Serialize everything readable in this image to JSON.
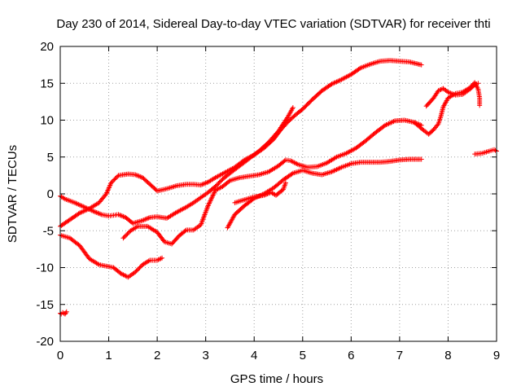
{
  "chart_data": {
    "type": "scatter",
    "title": "Day 230 of 2014, Sidereal Day-to-day VTEC variation (SDTVAR) for receiver thti",
    "xlabel": "GPS time / hours",
    "ylabel": "SDTVAR / TECUs",
    "xlim": [
      0,
      9
    ],
    "ylim": [
      -20,
      20
    ],
    "xticks": [
      0,
      1,
      2,
      3,
      4,
      5,
      6,
      7,
      8,
      9
    ],
    "yticks": [
      -20,
      -15,
      -10,
      -5,
      0,
      5,
      10,
      15,
      20
    ],
    "grid": true,
    "legend": "none",
    "marker": "plus",
    "color": "#ff0000",
    "series": [
      {
        "x": [
          0.0,
          0.02,
          0.05,
          0.1,
          0.13
        ],
        "y": [
          -16.2,
          -16.3,
          -16.1,
          -16.3,
          -16.0
        ]
      },
      {
        "x": [
          0.0,
          0.1,
          0.3,
          0.5,
          0.7,
          0.85,
          1.0,
          1.1,
          1.2,
          1.35,
          1.5,
          1.7,
          1.85,
          2.0,
          2.2,
          2.4,
          2.6,
          2.75,
          2.9,
          3.05,
          3.2,
          3.35,
          3.5,
          3.7,
          3.9,
          4.1,
          4.3,
          4.5,
          4.6,
          4.7,
          4.8
        ],
        "y": [
          -0.3,
          -0.7,
          -1.2,
          -1.8,
          -2.4,
          -2.8,
          -3.0,
          -2.9,
          -2.8,
          -3.2,
          -4.0,
          -3.6,
          -3.2,
          -3.1,
          -3.3,
          -2.5,
          -1.8,
          -1.2,
          -0.5,
          0.2,
          1.0,
          2.0,
          2.8,
          3.8,
          4.8,
          5.8,
          7.0,
          8.5,
          9.5,
          10.5,
          11.7
        ]
      },
      {
        "x": [
          0.0,
          0.2,
          0.4,
          0.6,
          0.8,
          0.95,
          1.1,
          1.25,
          1.4,
          1.55,
          1.7,
          1.85,
          2.0,
          2.1
        ],
        "y": [
          -5.6,
          -6.0,
          -7.0,
          -8.8,
          -9.6,
          -9.8,
          -10.0,
          -10.8,
          -11.3,
          -10.6,
          -9.6,
          -9.0,
          -9.0,
          -8.7
        ]
      },
      {
        "x": [
          0.0,
          0.2,
          0.4,
          0.6,
          0.8,
          0.95,
          1.05,
          1.2,
          1.4,
          1.55,
          1.7,
          1.85,
          2.0,
          2.2,
          2.4,
          2.6,
          2.75,
          2.9,
          3.05,
          3.2,
          3.4,
          3.6,
          3.8,
          4.0,
          4.2,
          4.4,
          4.55,
          4.7,
          4.85,
          5.0,
          5.2,
          5.4,
          5.6,
          5.8,
          6.0,
          6.2,
          6.4,
          6.6,
          6.8,
          7.0,
          7.2,
          7.45
        ],
        "y": [
          -4.4,
          -3.5,
          -2.6,
          -2.0,
          -1.2,
          0.0,
          1.5,
          2.5,
          2.7,
          2.6,
          2.2,
          1.3,
          0.4,
          0.7,
          1.1,
          1.3,
          1.3,
          1.2,
          1.6,
          2.2,
          2.9,
          3.6,
          4.6,
          5.3,
          6.2,
          7.4,
          8.7,
          9.8,
          10.7,
          11.5,
          12.8,
          14.0,
          14.9,
          15.5,
          16.2,
          17.1,
          17.6,
          18.0,
          18.1,
          18.0,
          17.9,
          17.5
        ]
      },
      {
        "x": [
          1.3,
          1.45,
          1.6,
          1.8,
          2.0,
          2.15,
          2.3,
          2.45,
          2.6,
          2.75,
          2.9,
          3.05,
          3.2,
          3.35,
          3.5,
          3.7,
          3.9,
          4.1,
          4.3,
          4.5,
          4.65,
          4.75,
          4.9,
          5.1,
          5.3,
          5.5,
          5.7,
          5.9,
          6.1,
          6.3,
          6.5,
          6.7,
          6.9,
          7.1,
          7.3,
          7.45
        ],
        "y": [
          -6.0,
          -5.0,
          -4.4,
          -4.4,
          -5.2,
          -6.5,
          -6.8,
          -5.7,
          -4.9,
          -4.9,
          -4.2,
          -1.6,
          0.5,
          1.0,
          1.8,
          2.2,
          2.4,
          2.6,
          3.0,
          3.8,
          4.6,
          4.5,
          4.0,
          3.6,
          3.7,
          4.2,
          5.0,
          5.5,
          6.2,
          7.2,
          8.3,
          9.3,
          9.9,
          10.0,
          9.7,
          9.3
        ]
      },
      {
        "x": [
          3.45,
          3.6,
          3.8,
          4.0,
          4.2,
          4.4,
          4.6,
          4.8,
          5.0,
          5.2,
          5.4,
          5.6,
          5.8,
          6.0,
          6.2,
          6.4,
          6.6,
          6.8,
          7.0,
          7.2,
          7.45
        ],
        "y": [
          -4.6,
          -2.8,
          -1.6,
          -0.6,
          0.0,
          0.8,
          1.9,
          2.8,
          3.2,
          2.8,
          2.6,
          3.0,
          3.6,
          4.1,
          4.3,
          4.3,
          4.3,
          4.4,
          4.6,
          4.7,
          4.7
        ]
      },
      {
        "x": [
          3.6,
          3.8,
          4.0,
          4.2,
          4.35,
          4.45,
          4.6,
          4.65
        ],
        "y": [
          -1.2,
          -0.8,
          -0.4,
          -0.2,
          0.2,
          -0.2,
          0.6,
          1.5
        ]
      },
      {
        "x": [
          7.3,
          7.5,
          7.6,
          7.7,
          7.8,
          7.85,
          7.9,
          8.0,
          8.15,
          8.3,
          8.45,
          8.55,
          8.62,
          8.65,
          8.65
        ],
        "y": [
          9.7,
          8.6,
          8.1,
          8.7,
          9.5,
          10.5,
          11.8,
          13.0,
          13.6,
          13.8,
          14.4,
          15.1,
          14.2,
          13.0,
          12.0
        ]
      },
      {
        "x": [
          7.55,
          7.7,
          7.8,
          7.9,
          8.0,
          8.15,
          8.3,
          8.45,
          8.55,
          8.62
        ],
        "y": [
          11.9,
          13.0,
          14.0,
          14.3,
          13.8,
          13.4,
          13.5,
          14.2,
          14.8,
          15.0
        ]
      },
      {
        "x": [
          8.55,
          8.7,
          8.85,
          8.95,
          9.0
        ],
        "y": [
          5.4,
          5.5,
          5.8,
          6.0,
          5.8
        ]
      }
    ]
  }
}
